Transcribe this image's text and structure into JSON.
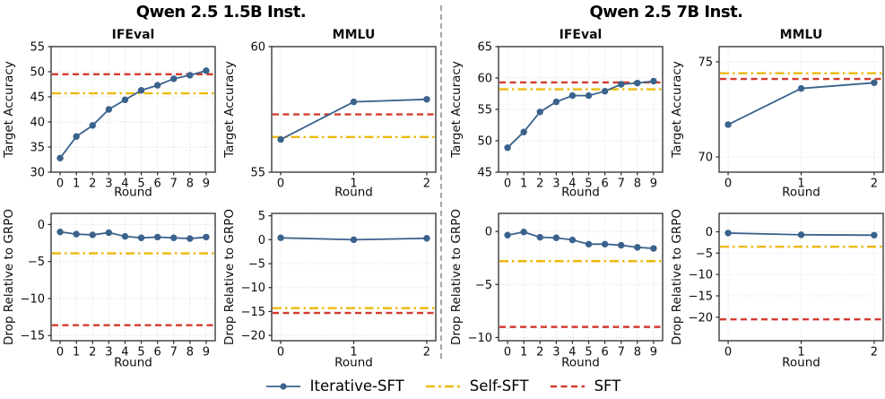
{
  "groups": [
    {
      "title": "Qwen 2.5 1.5B Inst."
    },
    {
      "title": "Qwen 2.5 7B Inst."
    }
  ],
  "legend": [
    {
      "label": "Iterative-SFT",
      "color": "#3a628c",
      "line_style": "solid",
      "marker": "circle"
    },
    {
      "label": "Self-SFT",
      "color": "#ecb90e",
      "line_style": "dashdot"
    },
    {
      "label": "SFT",
      "color": "#d33b30",
      "line_style": "dashed"
    }
  ],
  "colors": {
    "iterative_sft": "#3a628c",
    "self_sft": "#ecb90e",
    "sft": "#d33b30",
    "grid": "#dbdbdb",
    "spine": "#3a3a3a",
    "divider": "#a6a6a6"
  },
  "chart_data": [
    {
      "type": "line",
      "model": "Qwen 2.5 1.5B Inst.",
      "title": "IFEval",
      "xlabel": "Round",
      "ylabel": "Target Accuracy",
      "x": [
        0,
        1,
        2,
        3,
        4,
        5,
        6,
        7,
        8,
        9
      ],
      "yticks": [
        30,
        35,
        40,
        45,
        50,
        55
      ],
      "ylim": [
        30,
        55
      ],
      "grid": true,
      "series": [
        {
          "name": "Iterative-SFT",
          "values": [
            32.8,
            37.1,
            39.3,
            42.5,
            44.4,
            46.3,
            47.3,
            48.6,
            49.3,
            50.2
          ]
        },
        {
          "name": "Self-SFT",
          "hline": 45.7
        },
        {
          "name": "SFT",
          "hline": 49.5
        }
      ]
    },
    {
      "type": "line",
      "model": "Qwen 2.5 1.5B Inst.",
      "title": "MMLU",
      "xlabel": "Round",
      "ylabel": "Target Accuracy",
      "x": [
        0,
        1,
        2
      ],
      "yticks": [
        55,
        60
      ],
      "ylim": [
        55,
        60
      ],
      "grid": true,
      "series": [
        {
          "name": "Iterative-SFT",
          "values": [
            56.3,
            57.8,
            57.9
          ]
        },
        {
          "name": "Self-SFT",
          "hline": 56.4
        },
        {
          "name": "SFT",
          "hline": 57.3
        }
      ]
    },
    {
      "type": "line",
      "model": "Qwen 2.5 7B Inst.",
      "title": "IFEval",
      "xlabel": "Round",
      "ylabel": "Target Accuracy",
      "x": [
        0,
        1,
        2,
        3,
        4,
        5,
        6,
        7,
        8,
        9
      ],
      "yticks": [
        45,
        50,
        55,
        60,
        65
      ],
      "ylim": [
        45,
        65
      ],
      "grid": true,
      "series": [
        {
          "name": "Iterative-SFT",
          "values": [
            48.9,
            51.4,
            54.6,
            56.2,
            57.2,
            57.2,
            57.9,
            59.0,
            59.2,
            59.5
          ]
        },
        {
          "name": "Self-SFT",
          "hline": 58.2
        },
        {
          "name": "SFT",
          "hline": 59.3
        }
      ]
    },
    {
      "type": "line",
      "model": "Qwen 2.5 7B Inst.",
      "title": "MMLU",
      "xlabel": "Round",
      "ylabel": "Target Accuracy",
      "x": [
        0,
        1,
        2
      ],
      "yticks": [
        70,
        75
      ],
      "ylim": [
        69.2,
        75.8
      ],
      "grid": true,
      "series": [
        {
          "name": "Iterative-SFT",
          "values": [
            71.7,
            73.6,
            73.9
          ]
        },
        {
          "name": "Self-SFT",
          "hline": 74.4
        },
        {
          "name": "SFT",
          "hline": 74.1
        }
      ]
    },
    {
      "type": "line",
      "model": "Qwen 2.5 1.5B Inst.",
      "title": "",
      "xlabel": "Round",
      "ylabel": "Drop Relative to GRPO",
      "x": [
        0,
        1,
        2,
        3,
        4,
        5,
        6,
        7,
        8,
        9
      ],
      "yticks": [
        0,
        -5,
        -10,
        -15
      ],
      "ylim": [
        -15.7,
        1.5
      ],
      "grid": true,
      "series": [
        {
          "name": "Iterative-SFT",
          "values": [
            -1.0,
            -1.3,
            -1.4,
            -1.1,
            -1.6,
            -1.8,
            -1.7,
            -1.8,
            -1.9,
            -1.7
          ]
        },
        {
          "name": "Self-SFT",
          "hline": -3.9
        },
        {
          "name": "SFT",
          "hline": -13.6
        }
      ]
    },
    {
      "type": "line",
      "model": "Qwen 2.5 1.5B Inst.",
      "title": "",
      "xlabel": "Round",
      "ylabel": "Drop Relative to GRPO",
      "x": [
        0,
        1,
        2
      ],
      "yticks": [
        5,
        0,
        -5,
        -10,
        -15,
        -20
      ],
      "ylim": [
        -21.1,
        5.5
      ],
      "grid": true,
      "series": [
        {
          "name": "Iterative-SFT",
          "values": [
            0.4,
            0.0,
            0.3
          ]
        },
        {
          "name": "Self-SFT",
          "hline": -14.3
        },
        {
          "name": "SFT",
          "hline": -15.3
        }
      ]
    },
    {
      "type": "line",
      "model": "Qwen 2.5 7B Inst.",
      "title": "",
      "xlabel": "Round",
      "ylabel": "Drop Relative to GRPO",
      "x": [
        0,
        1,
        2,
        3,
        4,
        5,
        6,
        7,
        8,
        9
      ],
      "yticks": [
        0,
        -5,
        -10
      ],
      "ylim": [
        -10.3,
        1.7
      ],
      "grid": true,
      "series": [
        {
          "name": "Iterative-SFT",
          "values": [
            -0.35,
            -0.05,
            -0.55,
            -0.6,
            -0.8,
            -1.2,
            -1.2,
            -1.3,
            -1.5,
            -1.6
          ]
        },
        {
          "name": "Self-SFT",
          "hline": -2.8
        },
        {
          "name": "SFT",
          "hline": -9.0
        }
      ]
    },
    {
      "type": "line",
      "model": "Qwen 2.5 7B Inst.",
      "title": "",
      "xlabel": "Round",
      "ylabel": "Drop Relative to GRPO",
      "x": [
        0,
        1,
        2
      ],
      "yticks": [
        0,
        -5,
        -10,
        -15,
        -20
      ],
      "ylim": [
        -25.5,
        4.3
      ],
      "grid": true,
      "series": [
        {
          "name": "Iterative-SFT",
          "values": [
            -0.3,
            -0.7,
            -0.8
          ]
        },
        {
          "name": "Self-SFT",
          "hline": -3.5
        },
        {
          "name": "SFT",
          "hline": -20.5
        }
      ]
    }
  ]
}
